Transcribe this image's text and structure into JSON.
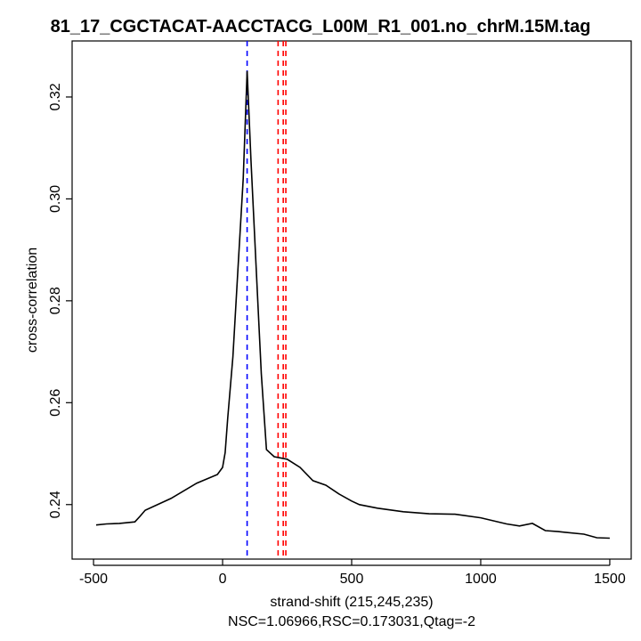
{
  "chart_data": {
    "type": "line",
    "title": "81_17_CGCTACAT-AACCTACG_L00M_R1_001.no_chrM.15M.tag",
    "xlabel": "strand-shift (215,245,235)",
    "subtitle": "NSC=1.06966,RSC=0.173031,Qtag=-2",
    "ylabel": "cross-correlation",
    "xlim": [
      -583,
      1583
    ],
    "ylim": [
      0.2293,
      0.331
    ],
    "xticks": [
      -500,
      0,
      500,
      1000,
      1500
    ],
    "xtick_labels": [
      "-500",
      "0",
      "500",
      "1000",
      "1500"
    ],
    "yticks": [
      0.24,
      0.26,
      0.28,
      0.3,
      0.32
    ],
    "ytick_labels": [
      "0.24",
      "0.26",
      "0.28",
      "0.30",
      "0.32"
    ],
    "grid": false,
    "series": [
      {
        "name": "cross-correlation",
        "color": "#000000",
        "x": [
          -490,
          -450,
          -400,
          -340,
          -320,
          -300,
          -200,
          -100,
          -20,
          0,
          10,
          20,
          40,
          60,
          80,
          95,
          110,
          130,
          150,
          170,
          200,
          250,
          300,
          350,
          400,
          450,
          500,
          530,
          600,
          700,
          800,
          900,
          1000,
          1100,
          1150,
          1200,
          1250,
          1300,
          1400,
          1450,
          1500
        ],
        "y": [
          0.236,
          0.2362,
          0.2363,
          0.2366,
          0.2377,
          0.2389,
          0.2412,
          0.2442,
          0.2459,
          0.2473,
          0.2502,
          0.257,
          0.269,
          0.2866,
          0.304,
          0.3251,
          0.3076,
          0.2866,
          0.2657,
          0.2508,
          0.2494,
          0.2489,
          0.2473,
          0.2447,
          0.2438,
          0.2421,
          0.2407,
          0.24,
          0.2393,
          0.2386,
          0.2382,
          0.2381,
          0.2374,
          0.2362,
          0.2358,
          0.2363,
          0.2349,
          0.2347,
          0.2342,
          0.2335,
          0.2334
        ]
      }
    ],
    "vlines": [
      {
        "x": 95,
        "color": "#0000ff",
        "style": "dashed"
      },
      {
        "x": 215,
        "color": "#ff0000",
        "style": "dashed"
      },
      {
        "x": 245,
        "color": "#ff0000",
        "style": "dashed"
      },
      {
        "x": 235,
        "color": "#ff0000",
        "style": "dashed"
      }
    ]
  }
}
